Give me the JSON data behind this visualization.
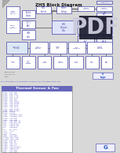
{
  "title": "ZH5 Block Diagram",
  "page_bg": "#d8d8d8",
  "diagram_bg": "#e8e8e8",
  "paper_bg": "#f5f5f5",
  "paper_shadow": "#bbbbbb",
  "box_edge": "#4444aa",
  "box_fill": "#dde0f5",
  "box_fill2": "#ffffff",
  "line_color": "#333333",
  "title_color": "#111111",
  "text_color": "#4444aa",
  "pdf_bg": "#1a1a2e",
  "pdf_text": "#ccccdd",
  "logo_color": "#2255bb",
  "subtitle_color": "#4444bb",
  "subtitle_text": "PDF created with FinePrint pdfFactory Pro trial version  http://www.fineprint.com",
  "list_title": "Thermal Sensor & Fan",
  "list_title_bg": "#6666bb",
  "list_title_text": "#ffffff",
  "list_text_color": "#3333aa",
  "list_bg": "#ffffff",
  "list_border": "#888888",
  "corner_color": "#cccccc",
  "fold_color": "#aaaaaa"
}
